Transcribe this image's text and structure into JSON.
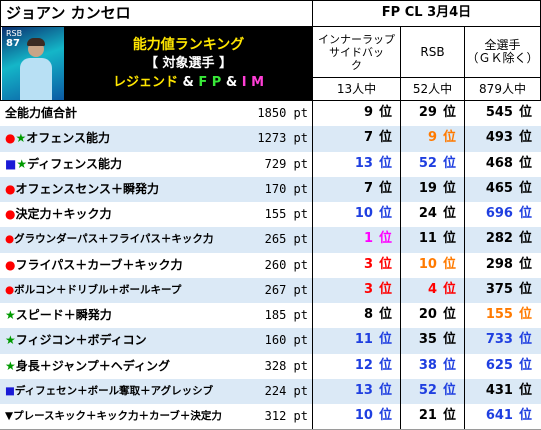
{
  "header": {
    "player_name": "ジョアン カンセロ",
    "date_label": "FP CL 3月4日",
    "card_position": "RSB",
    "card_rating": "87",
    "banner_line1": "能力値ランキング",
    "banner_line2": "【 対象選手 】",
    "banner_line3": {
      "legend": "レジェンド",
      "amp1": " & ",
      "fp": "F P",
      "amp2": " & ",
      "im": "I M"
    }
  },
  "columns": [
    {
      "header": "インナーラップサイドバック",
      "header_line1": "インナーラップ",
      "header_line2": "サイドバッ",
      "header_line3": "ク",
      "count": "13人中"
    },
    {
      "header": "RSB",
      "count": "52人中"
    },
    {
      "header_line1": "全選手",
      "header_line2": "（ＧＫ除く）",
      "count": "879人中"
    }
  ],
  "rank_unit": "位",
  "rows": [
    {
      "marker": "",
      "marker_color": "",
      "label": "全能力値合計",
      "points": "1850 pt",
      "ranks": [
        {
          "v": "9",
          "c": "black"
        },
        {
          "v": "29",
          "c": "black"
        },
        {
          "v": "545",
          "c": "black"
        }
      ]
    },
    {
      "marker": "●★",
      "marker_color": "red-green",
      "label": "オフェンス能力",
      "points": "1273 pt",
      "ranks": [
        {
          "v": "7",
          "c": "black"
        },
        {
          "v": "9",
          "c": "orange"
        },
        {
          "v": "493",
          "c": "black"
        }
      ]
    },
    {
      "marker": "■★",
      "marker_color": "blue-green",
      "label": "ディフェンス能力",
      "points": "729 pt",
      "ranks": [
        {
          "v": "13",
          "c": "blue"
        },
        {
          "v": "52",
          "c": "blue"
        },
        {
          "v": "468",
          "c": "black"
        }
      ]
    },
    {
      "marker": "●",
      "marker_color": "red",
      "label": "オフェンスセンス＋瞬発力",
      "points": "170 pt",
      "ranks": [
        {
          "v": "7",
          "c": "black"
        },
        {
          "v": "19",
          "c": "black"
        },
        {
          "v": "465",
          "c": "black"
        }
      ]
    },
    {
      "marker": "●",
      "marker_color": "red",
      "label": "決定力＋キック力",
      "points": "155 pt",
      "ranks": [
        {
          "v": "10",
          "c": "blue"
        },
        {
          "v": "24",
          "c": "black"
        },
        {
          "v": "696",
          "c": "blue"
        }
      ]
    },
    {
      "marker": "●",
      "marker_color": "red",
      "label": "グラウンダーパス＋フライパス＋キック力",
      "points": "265 pt",
      "ranks": [
        {
          "v": "1",
          "c": "magenta"
        },
        {
          "v": "11",
          "c": "black"
        },
        {
          "v": "282",
          "c": "black"
        }
      ]
    },
    {
      "marker": "●",
      "marker_color": "red",
      "label": "フライパス＋カーブ＋キック力",
      "points": "260 pt",
      "ranks": [
        {
          "v": "3",
          "c": "red"
        },
        {
          "v": "10",
          "c": "orange"
        },
        {
          "v": "298",
          "c": "black"
        }
      ]
    },
    {
      "marker": "●",
      "marker_color": "red",
      "label": "ボルコン＋ドリブル＋ボールキープ",
      "points": "267 pt",
      "ranks": [
        {
          "v": "3",
          "c": "red"
        },
        {
          "v": "4",
          "c": "red"
        },
        {
          "v": "375",
          "c": "black"
        }
      ]
    },
    {
      "marker": "★",
      "marker_color": "green",
      "label": "スピード＋瞬発力",
      "points": "185 pt",
      "ranks": [
        {
          "v": "8",
          "c": "black"
        },
        {
          "v": "20",
          "c": "black"
        },
        {
          "v": "155",
          "c": "orange"
        }
      ]
    },
    {
      "marker": "★",
      "marker_color": "green",
      "label": "フィジコン＋ボディコン",
      "points": "160 pt",
      "ranks": [
        {
          "v": "11",
          "c": "blue"
        },
        {
          "v": "35",
          "c": "black"
        },
        {
          "v": "733",
          "c": "blue"
        }
      ]
    },
    {
      "marker": "★",
      "marker_color": "green",
      "label": "身長＋ジャンプ＋ヘディング",
      "points": "328 pt",
      "ranks": [
        {
          "v": "12",
          "c": "blue"
        },
        {
          "v": "38",
          "c": "blue"
        },
        {
          "v": "625",
          "c": "blue"
        }
      ]
    },
    {
      "marker": "■",
      "marker_color": "blue",
      "label": "ディフェセン＋ボール奪取＋アグレッシブ",
      "points": "224 pt",
      "ranks": [
        {
          "v": "13",
          "c": "blue"
        },
        {
          "v": "52",
          "c": "blue"
        },
        {
          "v": "431",
          "c": "black"
        }
      ]
    },
    {
      "marker": "▼",
      "marker_color": "black",
      "label": "プレースキック＋キック力＋カーブ＋決定力",
      "points": "312 pt",
      "ranks": [
        {
          "v": "10",
          "c": "blue"
        },
        {
          "v": "21",
          "c": "black"
        },
        {
          "v": "641",
          "c": "blue"
        }
      ]
    }
  ]
}
